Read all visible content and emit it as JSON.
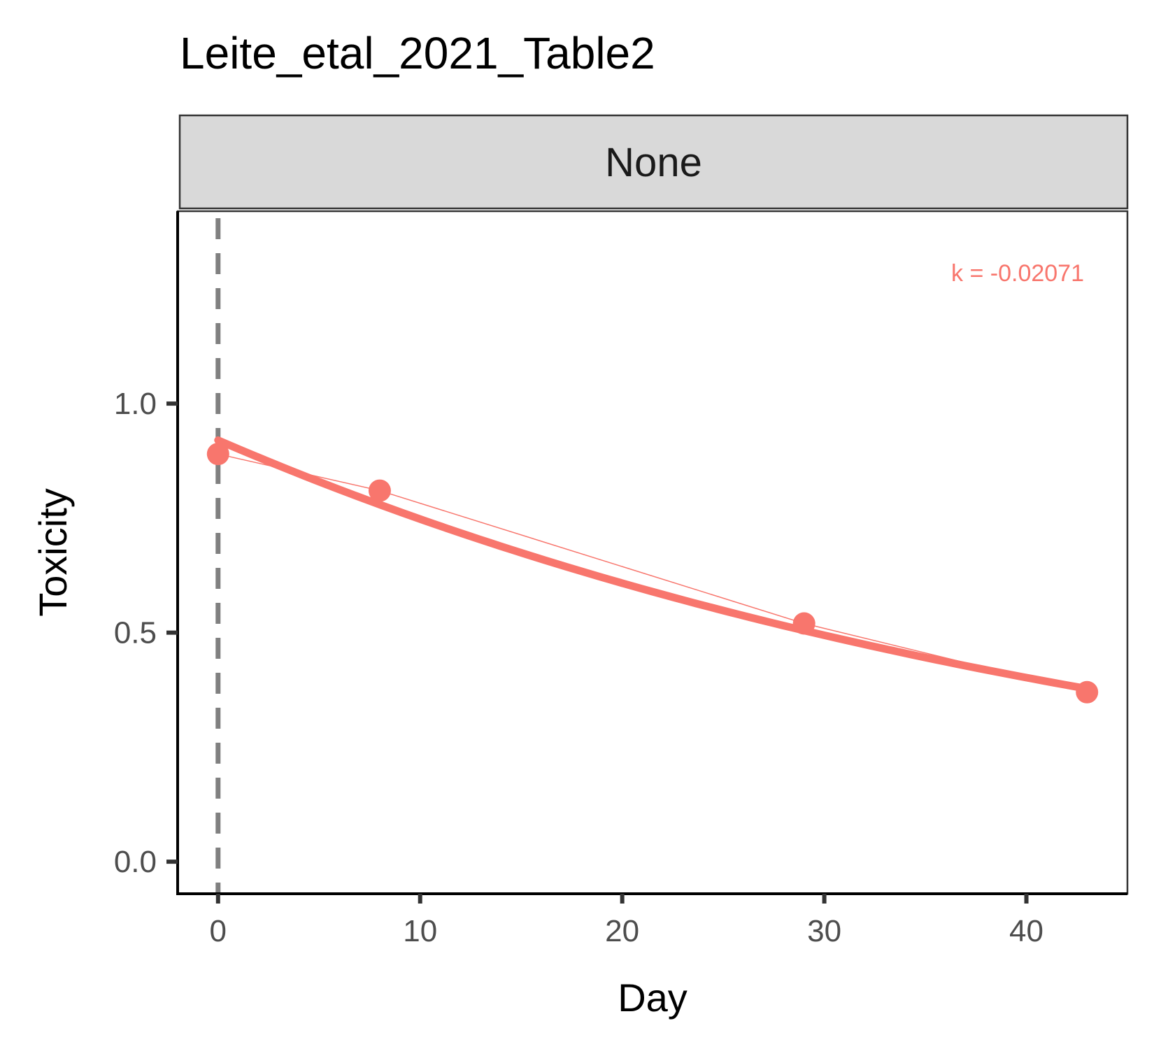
{
  "chart_data": {
    "type": "line",
    "title": "Leite_etal_2021_Table2",
    "facet": "None",
    "xlabel": "Day",
    "ylabel": "Toxicity",
    "xlim": [
      -2,
      45
    ],
    "ylim": [
      -0.07,
      1.42
    ],
    "x_ticks": [
      0,
      10,
      20,
      30,
      40
    ],
    "x_tick_labels": [
      "0",
      "10",
      "20",
      "30",
      "40"
    ],
    "y_ticks": [
      0,
      0.5,
      1
    ],
    "y_tick_labels": [
      "0.0",
      "0.5",
      "1.0"
    ],
    "vline_x": 0,
    "series": [
      {
        "x": [
          0,
          8,
          29,
          43
        ],
        "y": [
          0.89,
          0.81,
          0.52,
          0.37
        ]
      }
    ],
    "fit": {
      "k": -0.02071,
      "y0": 0.92,
      "x_range": [
        0,
        43
      ]
    },
    "annotation": "k = -0.02071",
    "grid": false,
    "colors": {
      "series": "#F8766D",
      "vline": "#808080",
      "strip_fill": "#D9D9D9",
      "strip_border": "#333333",
      "axis": "#000000",
      "tick": "#333333"
    }
  }
}
